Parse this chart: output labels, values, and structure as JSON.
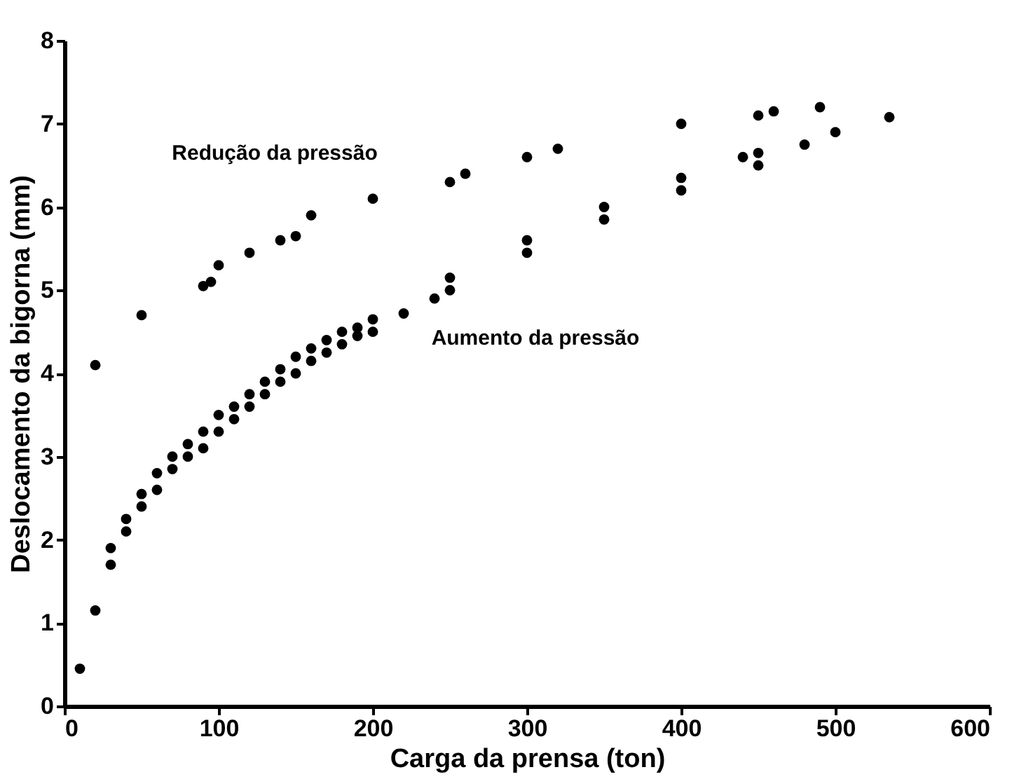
{
  "chart_data": {
    "type": "scatter",
    "xlabel": "Carga da prensa (ton)",
    "ylabel": "Deslocamento da bigorna (mm)",
    "xlim": [
      0,
      600
    ],
    "xticks": [
      0,
      100,
      200,
      300,
      400,
      500,
      600
    ],
    "ylim": [
      0,
      8
    ],
    "yticks": [
      0,
      1,
      2,
      3,
      4,
      5,
      6,
      7,
      8
    ],
    "grid": false,
    "marker": "circle",
    "series": [
      {
        "color": "#000000",
        "x": [
          20,
          50,
          90,
          95,
          100,
          120,
          140,
          150,
          160,
          200,
          250,
          260,
          300,
          320,
          400,
          450,
          460,
          490
        ],
        "values": [
          4.1,
          4.7,
          5.05,
          5.1,
          5.3,
          5.45,
          5.6,
          5.65,
          5.9,
          6.1,
          6.3,
          6.4,
          6.6,
          6.7,
          7.0,
          7.1,
          7.15,
          7.2
        ]
      },
      {
        "color": "#000000",
        "x": [
          10,
          20,
          30,
          30,
          40,
          40,
          50,
          50,
          60,
          60,
          70,
          70,
          80,
          80,
          90,
          90,
          100,
          100,
          110,
          110,
          120,
          120,
          130,
          130,
          140,
          140,
          150,
          150,
          160,
          160,
          170,
          170,
          180,
          180,
          190,
          190,
          200,
          200,
          220,
          240,
          250,
          250,
          300,
          300,
          350,
          350,
          400,
          400,
          440,
          450,
          450,
          480,
          500,
          535
        ],
        "values": [
          0.45,
          1.15,
          1.7,
          1.9,
          2.1,
          2.25,
          2.4,
          2.55,
          2.6,
          2.8,
          2.85,
          3.0,
          3.0,
          3.15,
          3.1,
          3.3,
          3.3,
          3.5,
          3.45,
          3.6,
          3.6,
          3.75,
          3.75,
          3.9,
          3.9,
          4.05,
          4.0,
          4.2,
          4.15,
          4.3,
          4.25,
          4.4,
          4.35,
          4.5,
          4.45,
          4.55,
          4.5,
          4.65,
          4.72,
          4.9,
          5.0,
          5.15,
          5.45,
          5.6,
          5.85,
          6.0,
          6.2,
          6.35,
          6.6,
          6.5,
          6.65,
          6.75,
          6.9,
          7.08
        ]
      }
    ],
    "annotations": [
      "Redução da pressão",
      "Aumento da pressão"
    ]
  }
}
